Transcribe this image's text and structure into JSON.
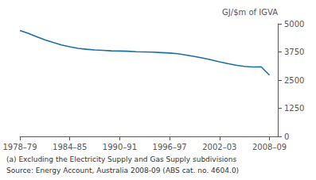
{
  "chart_data": {
    "type": "line",
    "x": [
      1978,
      1979,
      1980,
      1981,
      1982,
      1983,
      1984,
      1985,
      1986,
      1987,
      1988,
      1989,
      1990,
      1991,
      1992,
      1993,
      1994,
      1995,
      1996,
      1997,
      1998,
      1999,
      2000,
      2001,
      2002,
      2003,
      2004,
      2005,
      2006,
      2007,
      2008
    ],
    "values": [
      4700,
      4580,
      4430,
      4290,
      4170,
      4060,
      3980,
      3910,
      3870,
      3840,
      3820,
      3800,
      3790,
      3780,
      3760,
      3750,
      3740,
      3720,
      3700,
      3670,
      3610,
      3550,
      3480,
      3400,
      3310,
      3230,
      3160,
      3110,
      3080,
      3090,
      2720
    ],
    "color": "#1a6fa3",
    "xlim": [
      1978,
      2009
    ],
    "xticks": [
      {
        "value": 1978,
        "label": "1978–79"
      },
      {
        "value": 1984,
        "label": "1984–85"
      },
      {
        "value": 1990,
        "label": "1990–91"
      },
      {
        "value": 1996,
        "label": "1996–97"
      },
      {
        "value": 2002,
        "label": "2002–03"
      },
      {
        "value": 2008,
        "label": "2008–09"
      }
    ],
    "ylim": [
      0,
      5000
    ],
    "yticks": [
      0,
      1250,
      2500,
      3750,
      5000
    ],
    "ylabel": "GJ/$m of IGVA",
    "annotations": [
      "(a) Excluding the Electricity Supply and Gas Supply subdivisions",
      "Source: Energy Account, Australia 2008-09 (ABS cat. no. 4604.0)"
    ],
    "grid": false
  }
}
